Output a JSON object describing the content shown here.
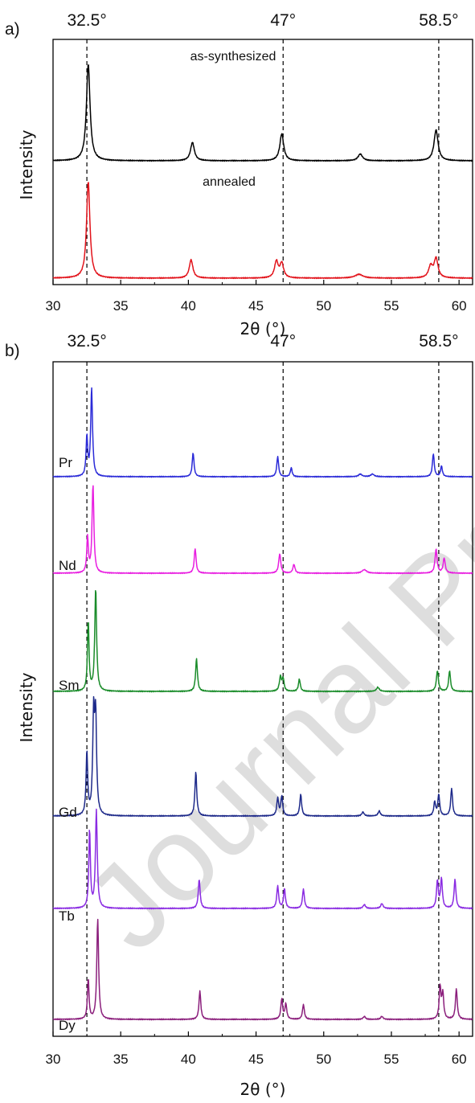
{
  "chart_data": [
    {
      "panel": "a)",
      "type": "line",
      "xlabel": "2θ (°)",
      "ylabel": "Intensity",
      "xlim": [
        30,
        61
      ],
      "xticks": [
        30,
        35,
        40,
        45,
        50,
        55,
        60
      ],
      "reference_lines": [
        {
          "x": 32.5,
          "label": "32.5°"
        },
        {
          "x": 47,
          "label": "47°"
        },
        {
          "x": 58.5,
          "label": "58.5°"
        }
      ],
      "annotations": [
        "as-synthesized",
        "annealed"
      ],
      "series": [
        {
          "name": "as-synthesized",
          "color": "#000000",
          "peaks": [
            [
              32.6,
              0.16,
              1.0
            ],
            [
              40.3,
              0.17,
              0.19
            ],
            [
              46.9,
              0.17,
              0.28
            ],
            [
              52.7,
              0.2,
              0.07
            ],
            [
              58.3,
              0.18,
              0.32
            ]
          ]
        },
        {
          "name": "annealed",
          "color": "#e2131b",
          "peaks": [
            [
              32.6,
              0.15,
              1.0
            ],
            [
              40.2,
              0.16,
              0.19
            ],
            [
              46.5,
              0.16,
              0.17
            ],
            [
              46.9,
              0.16,
              0.15
            ],
            [
              52.6,
              0.35,
              0.04
            ],
            [
              57.9,
              0.18,
              0.12
            ],
            [
              58.3,
              0.17,
              0.2
            ]
          ]
        }
      ]
    },
    {
      "panel": "b)",
      "type": "line",
      "xlabel": "2θ (°)",
      "ylabel": "Intensity",
      "xlim": [
        30,
        61
      ],
      "xticks": [
        30,
        35,
        40,
        45,
        50,
        55,
        60
      ],
      "reference_lines": [
        {
          "x": 32.5,
          "label": "32.5°"
        },
        {
          "x": 47,
          "label": "47°"
        },
        {
          "x": 58.5,
          "label": "58.5°"
        }
      ],
      "series": [
        {
          "name": "Pr",
          "color": "#2b2bd8",
          "peaks": [
            [
              32.5,
              0.07,
              0.45
            ],
            [
              32.85,
              0.08,
              1.0
            ],
            [
              40.35,
              0.08,
              0.27
            ],
            [
              46.6,
              0.08,
              0.23
            ],
            [
              47.6,
              0.08,
              0.1
            ],
            [
              52.7,
              0.15,
              0.03
            ],
            [
              53.6,
              0.15,
              0.03
            ],
            [
              58.1,
              0.08,
              0.26
            ],
            [
              58.7,
              0.08,
              0.12
            ]
          ]
        },
        {
          "name": "Nd",
          "color": "#e81ee0",
          "peaks": [
            [
              32.55,
              0.07,
              0.4
            ],
            [
              32.95,
              0.08,
              1.0
            ],
            [
              40.5,
              0.08,
              0.28
            ],
            [
              46.75,
              0.09,
              0.22
            ],
            [
              47.8,
              0.09,
              0.1
            ],
            [
              53.0,
              0.2,
              0.04
            ],
            [
              58.3,
              0.09,
              0.27
            ],
            [
              58.9,
              0.09,
              0.17
            ]
          ]
        },
        {
          "name": "Sm",
          "color": "#1a8c2a",
          "peaks": [
            [
              32.6,
              0.07,
              0.68
            ],
            [
              33.15,
              0.08,
              1.0
            ],
            [
              40.6,
              0.08,
              0.32
            ],
            [
              46.8,
              0.09,
              0.14
            ],
            [
              47.0,
              0.08,
              0.12
            ],
            [
              48.2,
              0.08,
              0.12
            ],
            [
              54.0,
              0.12,
              0.04
            ],
            [
              58.4,
              0.09,
              0.2
            ],
            [
              59.3,
              0.08,
              0.2
            ]
          ]
        },
        {
          "name": "Gd",
          "color": "#1e2a8a",
          "peaks": [
            [
              32.5,
              0.07,
              0.65
            ],
            [
              33.0,
              0.08,
              1.0
            ],
            [
              33.15,
              0.08,
              0.95
            ],
            [
              40.55,
              0.08,
              0.45
            ],
            [
              46.6,
              0.08,
              0.18
            ],
            [
              46.9,
              0.08,
              0.2
            ],
            [
              48.3,
              0.08,
              0.22
            ],
            [
              52.9,
              0.1,
              0.04
            ],
            [
              54.1,
              0.1,
              0.05
            ],
            [
              58.2,
              0.08,
              0.14
            ],
            [
              58.5,
              0.08,
              0.22
            ],
            [
              59.45,
              0.08,
              0.28
            ]
          ]
        },
        {
          "name": "Tb",
          "color": "#8a2be2",
          "peaks": [
            [
              32.7,
              0.07,
              0.8
            ],
            [
              33.2,
              0.08,
              1.0
            ],
            [
              40.8,
              0.08,
              0.3
            ],
            [
              46.6,
              0.08,
              0.23
            ],
            [
              47.1,
              0.08,
              0.2
            ],
            [
              48.5,
              0.08,
              0.2
            ],
            [
              53.0,
              0.1,
              0.04
            ],
            [
              54.3,
              0.1,
              0.05
            ],
            [
              58.4,
              0.08,
              0.28
            ],
            [
              58.7,
              0.08,
              0.3
            ],
            [
              59.7,
              0.08,
              0.3
            ]
          ]
        },
        {
          "name": "Dy",
          "color": "#8b1f7c",
          "peaks": [
            [
              32.6,
              0.07,
              0.4
            ],
            [
              33.3,
              0.08,
              1.0
            ],
            [
              40.85,
              0.08,
              0.28
            ],
            [
              46.9,
              0.08,
              0.2
            ],
            [
              47.2,
              0.08,
              0.15
            ],
            [
              48.5,
              0.08,
              0.15
            ],
            [
              53.0,
              0.1,
              0.03
            ],
            [
              54.3,
              0.1,
              0.03
            ],
            [
              58.6,
              0.08,
              0.32
            ],
            [
              58.8,
              0.08,
              0.25
            ],
            [
              59.8,
              0.08,
              0.3
            ]
          ]
        }
      ]
    }
  ],
  "watermark": "Journal Pre"
}
